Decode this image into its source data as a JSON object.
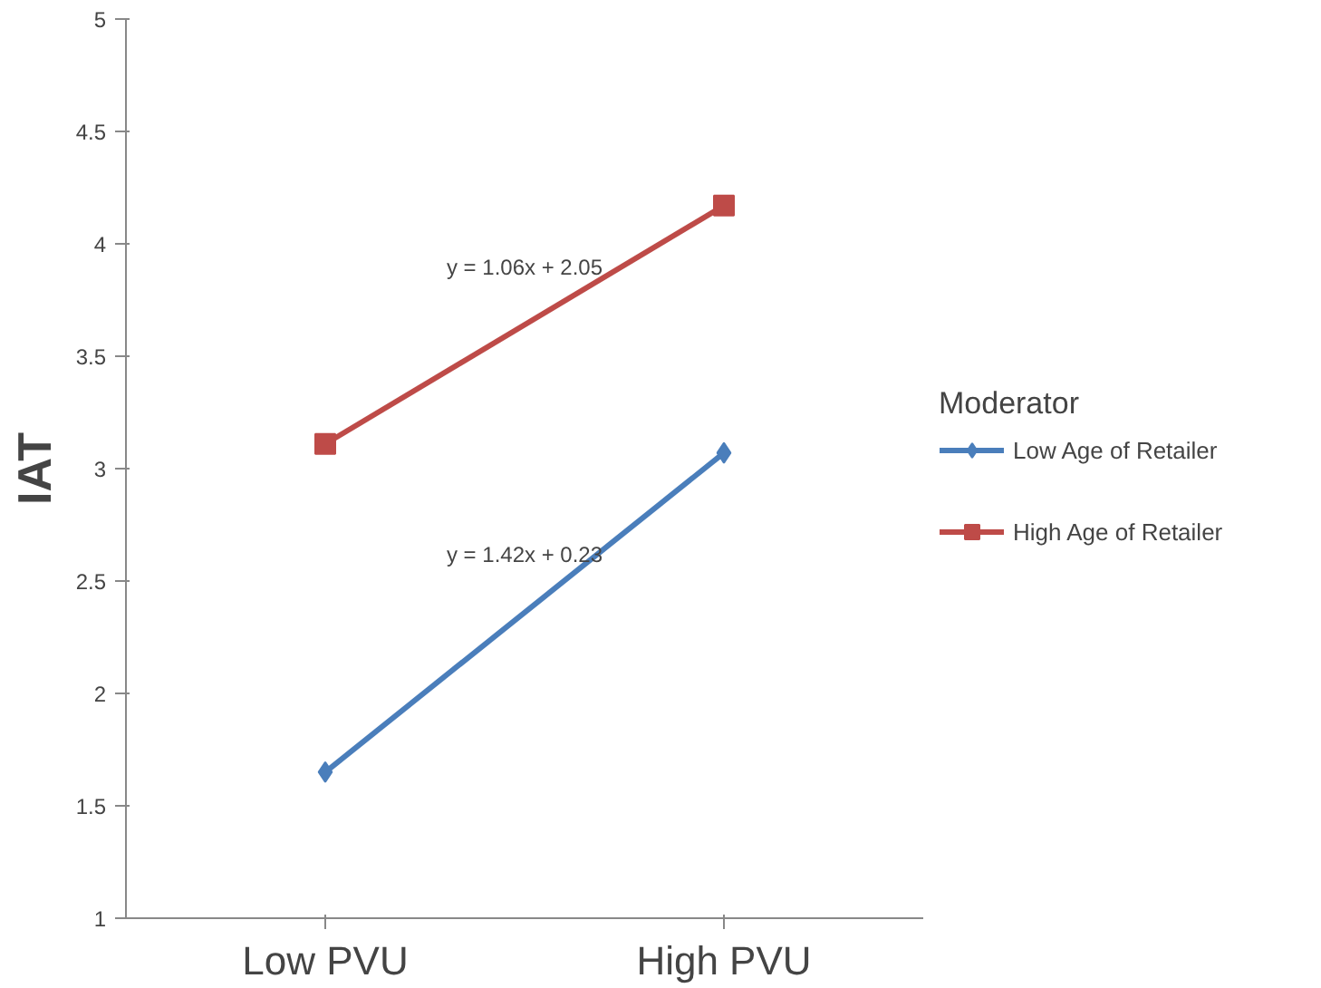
{
  "chart_data": {
    "type": "line",
    "ylabel": "IAT",
    "legend_title": "Moderator",
    "legend": "right",
    "grid": false,
    "categories": [
      "Low PVU",
      "High PVU"
    ],
    "ylim": [
      1,
      5
    ],
    "yticks": [
      1,
      1.5,
      2,
      2.5,
      3,
      3.5,
      4,
      4.5,
      5
    ],
    "series": [
      {
        "name": "Low Age of Retailer",
        "color": "#4a7ebb",
        "marker": "diamond",
        "values": [
          1.65,
          3.07
        ]
      },
      {
        "name": "High Age of Retailer",
        "color": "#be4b48",
        "marker": "square",
        "values": [
          3.11,
          4.17
        ]
      }
    ],
    "annotations": [
      "y = 1.42x + 0.23",
      "y = 1.06x + 2.05"
    ]
  }
}
